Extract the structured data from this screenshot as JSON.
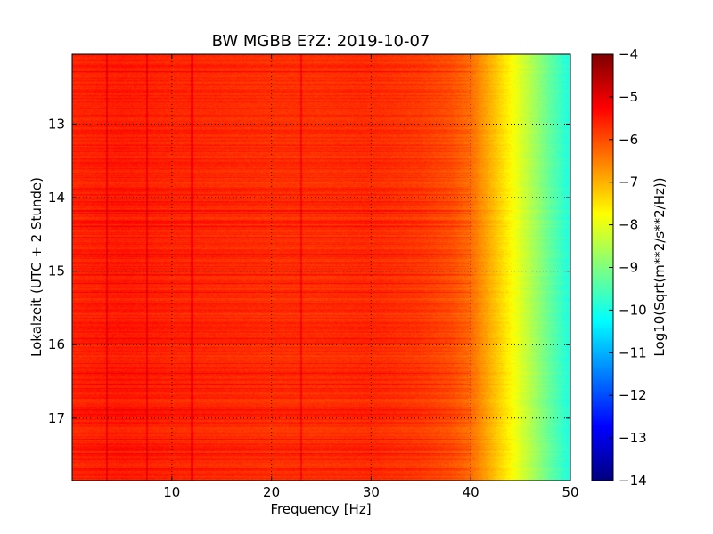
{
  "chart_data": {
    "type": "heatmap",
    "title": "BW MGBB E?Z: 2019-10-07",
    "xlabel": "Frequency [Hz]",
    "ylabel": "Lokalzeit (UTC + 2 Stunde)",
    "xlim": [
      0,
      50
    ],
    "ylim": [
      17.85,
      12.05
    ],
    "x_ticks": [
      10,
      20,
      30,
      40,
      50
    ],
    "y_ticks": [
      13,
      14,
      15,
      16,
      17
    ],
    "grid": true,
    "colorbar": {
      "label": "Log10(Sqrt(m**2/s**2/Hz))",
      "min": -14,
      "max": -4,
      "ticks": [
        -4,
        -5,
        -6,
        -7,
        -8,
        -9,
        -10,
        -11,
        -12,
        -13,
        -14
      ],
      "colormap": "jet"
    },
    "spectral_profile": {
      "frequency_hz": [
        0,
        5,
        10,
        15,
        20,
        25,
        30,
        35,
        38,
        40,
        42,
        44,
        46,
        48,
        50
      ],
      "log10_amplitude": [
        -5.6,
        -5.5,
        -5.6,
        -5.65,
        -5.7,
        -5.7,
        -5.65,
        -5.8,
        -6.0,
        -6.3,
        -7.0,
        -7.7,
        -8.5,
        -9.3,
        -10.0
      ]
    },
    "spectral_lines_hz": [
      3.5,
      7.5,
      12,
      23
    ]
  }
}
